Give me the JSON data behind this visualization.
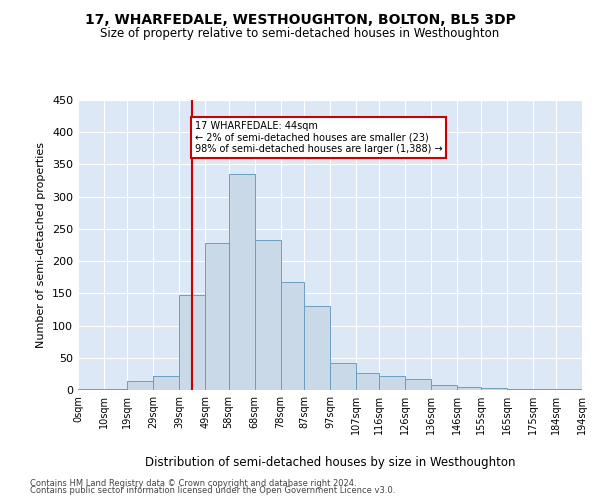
{
  "title": "17, WHARFEDALE, WESTHOUGHTON, BOLTON, BL5 3DP",
  "subtitle": "Size of property relative to semi-detached houses in Westhoughton",
  "xlabel": "Distribution of semi-detached houses by size in Westhoughton",
  "ylabel": "Number of semi-detached properties",
  "annotation_line1": "17 WHARFEDALE: 44sqm",
  "annotation_line2": "← 2% of semi-detached houses are smaller (23)",
  "annotation_line3": "98% of semi-detached houses are larger (1,388) →",
  "footer_line1": "Contains HM Land Registry data © Crown copyright and database right 2024.",
  "footer_line2": "Contains public sector information licensed under the Open Government Licence v3.0.",
  "property_size": 44,
  "bar_color": "#c9d9e8",
  "bar_edge_color": "#6a9ec0",
  "vline_color": "#cc0000",
  "annotation_box_color": "#cc0000",
  "background_color": "#ffffff",
  "plot_bg_color": "#dce8f5",
  "bin_edges": [
    0,
    10,
    19,
    29,
    39,
    49,
    58,
    68,
    78,
    87,
    97,
    107,
    116,
    126,
    136,
    146,
    155,
    165,
    175,
    184,
    194
  ],
  "bin_labels": [
    "0sqm",
    "10sqm",
    "19sqm",
    "29sqm",
    "39sqm",
    "49sqm",
    "58sqm",
    "68sqm",
    "78sqm",
    "87sqm",
    "97sqm",
    "107sqm",
    "116sqm",
    "126sqm",
    "136sqm",
    "146sqm",
    "155sqm",
    "165sqm",
    "175sqm",
    "184sqm",
    "194sqm"
  ],
  "counts": [
    1,
    2,
    14,
    22,
    147,
    228,
    335,
    233,
    168,
    130,
    42,
    27,
    21,
    17,
    7,
    4,
    3,
    2,
    1,
    1
  ],
  "ylim": [
    0,
    450
  ],
  "yticks": [
    0,
    50,
    100,
    150,
    200,
    250,
    300,
    350,
    400,
    450
  ]
}
